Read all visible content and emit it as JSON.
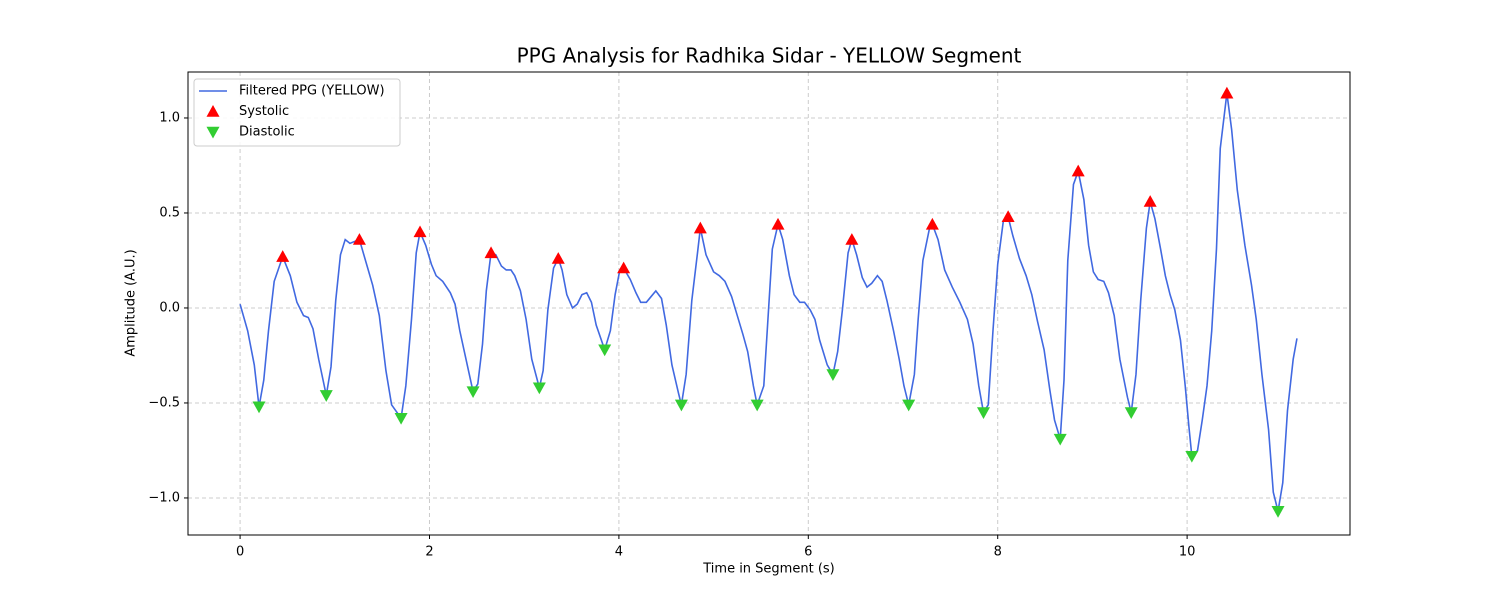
{
  "chart_data": {
    "type": "line",
    "title": "PPG Analysis for Radhika Sidar - YELLOW Segment",
    "x_label": "Time in Segment (s)",
    "y_label": "Amplitude (A.U.)",
    "xlim": [
      -0.55,
      11.72
    ],
    "ylim": [
      -1.195,
      1.242
    ],
    "xticks": [
      0,
      2,
      4,
      6,
      8,
      10
    ],
    "yticks": [
      {
        "value": -1,
        "label": "−1.0"
      },
      {
        "value": -0.5,
        "label": "−0.5"
      },
      {
        "value": 0,
        "label": "0.0"
      },
      {
        "value": 0.5,
        "label": "0.5"
      },
      {
        "value": 1,
        "label": "1.0"
      }
    ],
    "grid": true,
    "legend": "upper-left",
    "series": [
      {
        "name": "Filtered PPG (YELLOW)",
        "color": "#4169e1",
        "x": [
          0,
          0.08,
          0.15,
          0.2,
          0.25,
          0.3,
          0.36,
          0.45,
          0.53,
          0.6,
          0.67,
          0.72,
          0.77,
          0.83,
          0.91,
          0.96,
          1.01,
          1.06,
          1.11,
          1.16,
          1.26,
          1.33,
          1.4,
          1.47,
          1.54,
          1.6,
          1.7,
          1.75,
          1.81,
          1.86,
          1.9,
          1.96,
          2.02,
          2.07,
          2.14,
          2.22,
          2.27,
          2.32,
          2.39,
          2.46,
          2.51,
          2.56,
          2.6,
          2.65,
          2.7,
          2.76,
          2.81,
          2.86,
          2.9,
          2.96,
          3.02,
          3.08,
          3.16,
          3.2,
          3.25,
          3.31,
          3.36,
          3.4,
          3.45,
          3.51,
          3.56,
          3.61,
          3.66,
          3.71,
          3.76,
          3.85,
          3.91,
          3.96,
          4.01,
          4.05,
          4.12,
          4.18,
          4.23,
          4.29,
          4.34,
          4.39,
          4.45,
          4.5,
          4.56,
          4.63,
          4.66,
          4.71,
          4.77,
          4.83,
          4.86,
          4.92,
          5,
          5.06,
          5.12,
          5.19,
          5.25,
          5.31,
          5.36,
          5.42,
          5.46,
          5.53,
          5.57,
          5.62,
          5.68,
          5.73,
          5.8,
          5.85,
          5.91,
          5.96,
          6.02,
          6.07,
          6.12,
          6.2,
          6.26,
          6.31,
          6.36,
          6.42,
          6.46,
          6.51,
          6.57,
          6.62,
          6.67,
          6.73,
          6.78,
          6.83,
          6.9,
          6.96,
          7.01,
          7.06,
          7.12,
          7.16,
          7.21,
          7.28,
          7.31,
          7.37,
          7.44,
          7.52,
          7.6,
          7.68,
          7.74,
          7.8,
          7.85,
          7.9,
          7.95,
          8,
          8.06,
          8.11,
          8.16,
          8.23,
          8.3,
          8.36,
          8.42,
          8.49,
          8.55,
          8.6,
          8.66,
          8.7,
          8.74,
          8.8,
          8.85,
          8.91,
          8.96,
          9.01,
          9.06,
          9.12,
          9.17,
          9.23,
          9.29,
          9.37,
          9.41,
          9.46,
          9.51,
          9.57,
          9.61,
          9.66,
          9.72,
          9.77,
          9.82,
          9.87,
          9.93,
          9.98,
          10.02,
          10.05,
          10.11,
          10.16,
          10.21,
          10.26,
          10.31,
          10.35,
          10.42,
          10.47,
          10.53,
          10.61,
          10.68,
          10.73,
          10.79,
          10.86,
          10.91,
          10.96,
          11.01,
          11.06,
          11.12,
          11.16
        ],
        "values": [
          0.02,
          -0.12,
          -0.3,
          -0.52,
          -0.38,
          -0.12,
          0.14,
          0.27,
          0.17,
          0.03,
          -0.04,
          -0.05,
          -0.11,
          -0.27,
          -0.46,
          -0.31,
          0.04,
          0.28,
          0.36,
          0.34,
          0.36,
          0.24,
          0.12,
          -0.04,
          -0.33,
          -0.51,
          -0.58,
          -0.41,
          -0.06,
          0.29,
          0.4,
          0.33,
          0.23,
          0.17,
          0.14,
          0.08,
          0.02,
          -0.12,
          -0.28,
          -0.44,
          -0.4,
          -0.19,
          0.09,
          0.29,
          0.28,
          0.22,
          0.2,
          0.2,
          0.17,
          0.09,
          -0.06,
          -0.27,
          -0.42,
          -0.33,
          -0.01,
          0.21,
          0.26,
          0.2,
          0.07,
          0,
          0.02,
          0.07,
          0.08,
          0.03,
          -0.09,
          -0.22,
          -0.12,
          0.07,
          0.2,
          0.21,
          0.15,
          0.08,
          0.03,
          0.03,
          0.06,
          0.09,
          0.05,
          -0.09,
          -0.3,
          -0.45,
          -0.51,
          -0.35,
          0.04,
          0.29,
          0.42,
          0.28,
          0.19,
          0.17,
          0.14,
          0.06,
          -0.04,
          -0.14,
          -0.23,
          -0.41,
          -0.51,
          -0.41,
          -0.09,
          0.31,
          0.44,
          0.36,
          0.17,
          0.07,
          0.03,
          0.03,
          -0.01,
          -0.06,
          -0.17,
          -0.3,
          -0.35,
          -0.23,
          -0.01,
          0.29,
          0.36,
          0.28,
          0.16,
          0.11,
          0.13,
          0.17,
          0.14,
          0.04,
          -0.12,
          -0.27,
          -0.41,
          -0.51,
          -0.35,
          -0.06,
          0.25,
          0.42,
          0.44,
          0.36,
          0.2,
          0.11,
          0.03,
          -0.06,
          -0.19,
          -0.41,
          -0.55,
          -0.51,
          -0.12,
          0.23,
          0.46,
          0.48,
          0.38,
          0.26,
          0.17,
          0.07,
          -0.07,
          -0.22,
          -0.43,
          -0.59,
          -0.69,
          -0.38,
          0.25,
          0.65,
          0.72,
          0.57,
          0.33,
          0.19,
          0.15,
          0.14,
          0.08,
          -0.04,
          -0.27,
          -0.47,
          -0.55,
          -0.35,
          0.04,
          0.42,
          0.56,
          0.47,
          0.31,
          0.17,
          0.07,
          -0.01,
          -0.17,
          -0.41,
          -0.63,
          -0.78,
          -0.75,
          -0.59,
          -0.41,
          -0.12,
          0.31,
          0.84,
          1.13,
          0.94,
          0.62,
          0.33,
          0.12,
          -0.06,
          -0.35,
          -0.64,
          -0.97,
          -1.07,
          -0.92,
          -0.54,
          -0.27,
          -0.16
        ]
      },
      {
        "name": "Systolic",
        "color": "#ff0000",
        "marker": "triangle-up",
        "x": [
          0.45,
          1.26,
          1.9,
          2.65,
          3.36,
          4.05,
          4.86,
          5.68,
          6.46,
          7.31,
          8.11,
          8.85,
          9.61,
          10.42
        ],
        "values": [
          0.27,
          0.36,
          0.4,
          0.29,
          0.26,
          0.21,
          0.42,
          0.44,
          0.36,
          0.44,
          0.48,
          0.72,
          0.56,
          1.13
        ]
      },
      {
        "name": "Diastolic",
        "color": "#32cd32",
        "marker": "triangle-down",
        "x": [
          0.2,
          0.91,
          1.7,
          2.46,
          3.16,
          3.85,
          4.66,
          5.46,
          6.26,
          7.06,
          7.85,
          8.66,
          9.41,
          10.05,
          10.96
        ],
        "values": [
          -0.52,
          -0.46,
          -0.58,
          -0.44,
          -0.42,
          -0.22,
          -0.51,
          -0.51,
          -0.35,
          -0.51,
          -0.55,
          -0.69,
          -0.55,
          -0.78,
          -1.07
        ]
      }
    ]
  }
}
